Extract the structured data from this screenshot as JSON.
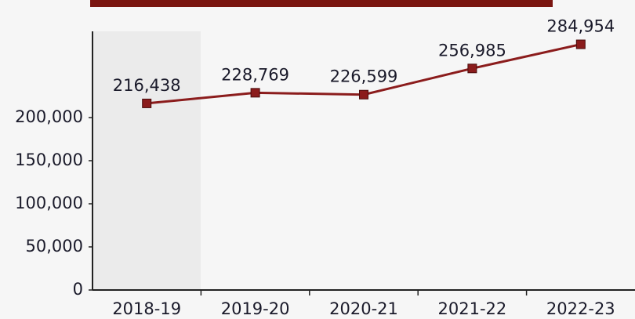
{
  "chart_data": {
    "type": "line",
    "categories": [
      "2018-19",
      "2019-20",
      "2020-21",
      "2021-22",
      "2022-23"
    ],
    "series": [
      {
        "color": "#8b1c1c",
        "values": [
          216438,
          228769,
          226599,
          256985,
          284954
        ],
        "value_labels": [
          "216,438",
          "228,769",
          "226,599",
          "256,985",
          "284,954"
        ]
      }
    ],
    "ylim": [
      0,
      300000
    ],
    "yticks": [
      0,
      {
        "value": 50000,
        "label": "50,000"
      },
      {
        "value": 100000,
        "label": "100,000"
      },
      {
        "value": 150000,
        "label": "150,000"
      },
      {
        "value": 200000,
        "label": "200,000"
      }
    ]
  }
}
